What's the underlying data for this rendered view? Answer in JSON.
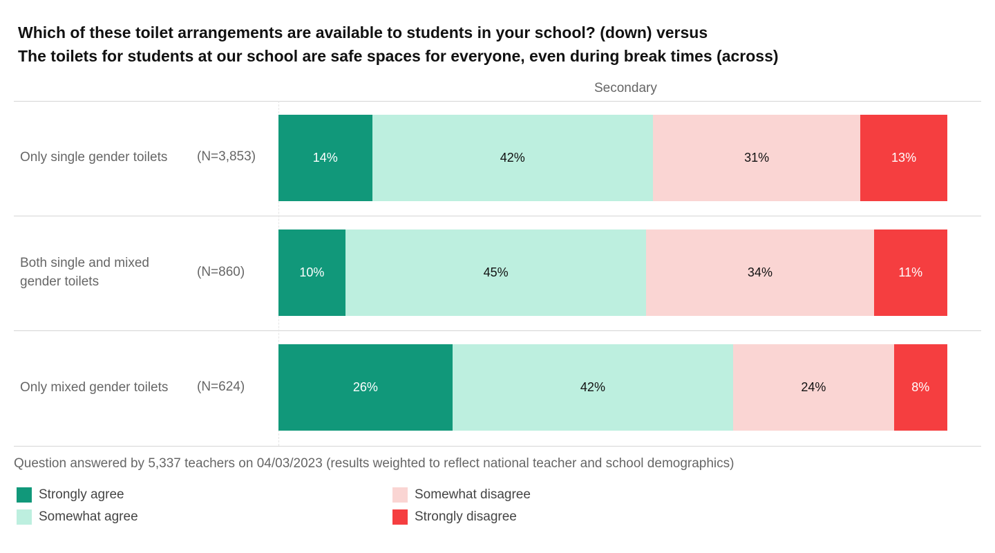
{
  "chart_data": {
    "type": "bar",
    "orientation": "horizontal-stacked-100",
    "title_lines": [
      "Which of these toilet arrangements are available to students in your school? (down) versus",
      "The toilets for students at our school are safe spaces for everyone, even during break times (across)"
    ],
    "panel_label": "Secondary",
    "categories": [
      {
        "label": "Only single gender toilets",
        "n": "(N=3,853)"
      },
      {
        "label": "Both single and mixed gender toilets",
        "n": "(N=860)"
      },
      {
        "label": "Only mixed gender toilets",
        "n": "(N=624)"
      }
    ],
    "series": [
      {
        "name": "Strongly agree",
        "color": "#11987A",
        "text_color": "#ffffff",
        "values": [
          14,
          10,
          26
        ]
      },
      {
        "name": "Somewhat agree",
        "color": "#BDEFDF",
        "text_color": "#111111",
        "values": [
          42,
          45,
          42
        ]
      },
      {
        "name": "Somewhat disagree",
        "color": "#FAD5D3",
        "text_color": "#111111",
        "values": [
          31,
          34,
          24
        ]
      },
      {
        "name": "Strongly disagree",
        "color": "#F53E40",
        "text_color": "#ffffff",
        "values": [
          13,
          11,
          8
        ]
      }
    ],
    "value_suffix": "%",
    "xlim": [
      0,
      100
    ],
    "note": "Question answered by 5,337 teachers on 04/03/2023 (results weighted to reflect national teacher and school demographics)",
    "legend_position": "bottom"
  }
}
